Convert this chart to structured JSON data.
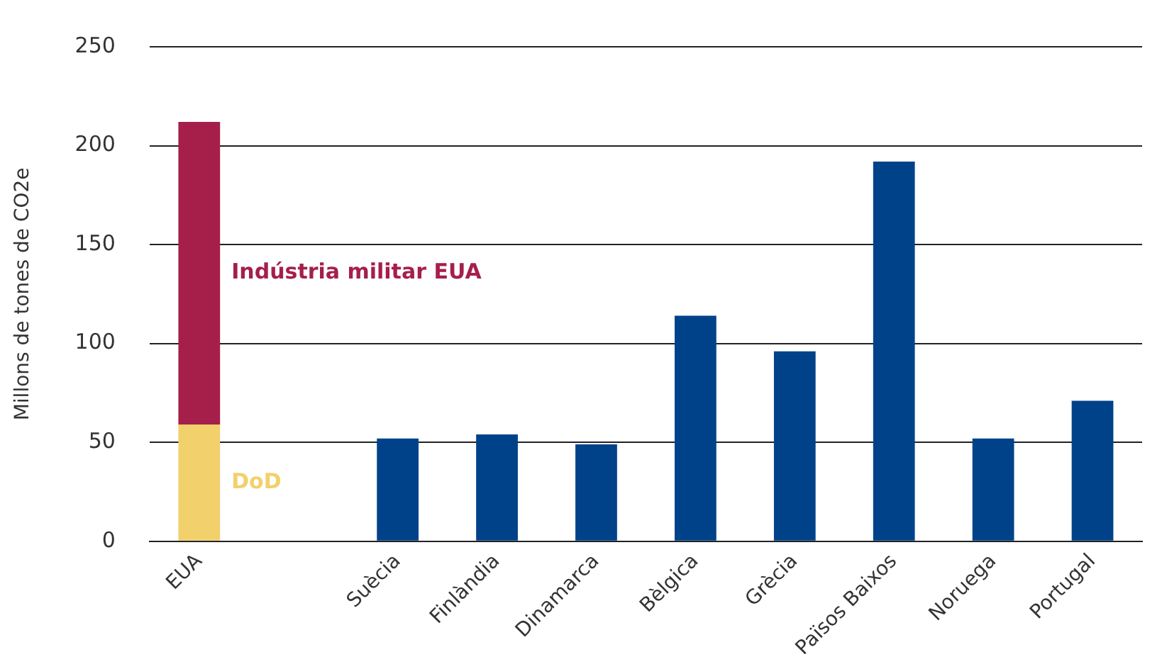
{
  "chart_data": {
    "type": "bar",
    "stacked": true,
    "ylabel": "Millons de tones de CO2e",
    "categories": [
      "EUA",
      null,
      "Suècia",
      "Finlàndia",
      "Dinamarca",
      "Bèlgica",
      "Grècia",
      "Països Baixos",
      "Noruega",
      "Portugal"
    ],
    "series": [
      {
        "name": "DoD",
        "color": "#f2d06b",
        "values": [
          59,
          null,
          null,
          null,
          null,
          null,
          null,
          null,
          null,
          null
        ]
      },
      {
        "name": "Indústria militar EUA",
        "color": "#a51f4a",
        "values": [
          153,
          null,
          null,
          null,
          null,
          null,
          null,
          null,
          null,
          null
        ]
      },
      {
        "color": "#00428a",
        "values": [
          null,
          null,
          52,
          54,
          49,
          114,
          96,
          192,
          52,
          71
        ]
      }
    ],
    "ylim": [
      0,
      250
    ],
    "yticks": [
      0,
      50,
      100,
      150,
      200,
      250
    ],
    "grid": "y",
    "legend": false
  }
}
